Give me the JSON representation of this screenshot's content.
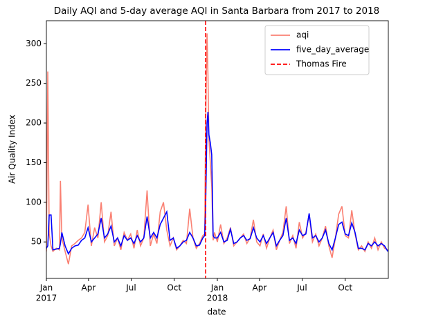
{
  "chart_data": {
    "type": "line",
    "title": "Daily AQI and 5-day average AQI in Santa Barbara from 2017 to 2018",
    "x_label": "date",
    "y_label": "Air Quality Index",
    "x": [
      0,
      3,
      6,
      10,
      14,
      21,
      28,
      30,
      33,
      40,
      47,
      54,
      61,
      68,
      75,
      82,
      89,
      96,
      103,
      110,
      117,
      124,
      131,
      138,
      145,
      152,
      159,
      166,
      173,
      180,
      187,
      194,
      201,
      208,
      215,
      222,
      229,
      236,
      243,
      250,
      257,
      264,
      271,
      278,
      285,
      292,
      299,
      306,
      313,
      320,
      327,
      334,
      338,
      340,
      343,
      345,
      347,
      350,
      353,
      356,
      359,
      365,
      372,
      379,
      386,
      393,
      400,
      407,
      414,
      421,
      428,
      435,
      442,
      449,
      456,
      463,
      470,
      477,
      484,
      491,
      498,
      505,
      512,
      519,
      526,
      533,
      540,
      547,
      554,
      561,
      568,
      575,
      582,
      589,
      596,
      603,
      610,
      617,
      624,
      631,
      638,
      645,
      652,
      659,
      666,
      673,
      680,
      687,
      694,
      701,
      708,
      715,
      722,
      729
    ],
    "series": [
      {
        "name": "aqi",
        "color": "#fa8072",
        "values": [
          38,
          265,
          60,
          45,
          38,
          42,
          40,
          127,
          55,
          38,
          22,
          45,
          48,
          52,
          55,
          62,
          97,
          45,
          68,
          55,
          100,
          50,
          58,
          88,
          45,
          55,
          40,
          62,
          52,
          60,
          42,
          65,
          45,
          55,
          115,
          45,
          60,
          48,
          88,
          100,
          65,
          45,
          55,
          40,
          45,
          52,
          48,
          92,
          55,
          42,
          48,
          58,
          60,
          200,
          313,
          260,
          180,
          150,
          120,
          52,
          62,
          50,
          72,
          48,
          55,
          68,
          45,
          50,
          55,
          60,
          48,
          55,
          78,
          50,
          45,
          60,
          42,
          55,
          65,
          40,
          52,
          62,
          95,
          48,
          58,
          42,
          75,
          55,
          62,
          85,
          50,
          60,
          45,
          55,
          70,
          45,
          30,
          55,
          85,
          95,
          58,
          55,
          90,
          60,
          40,
          45,
          38,
          50,
          42,
          55,
          40,
          50,
          42,
          40
        ]
      },
      {
        "name": "five_day_average",
        "color": "#0000ff",
        "values": [
          42,
          45,
          84,
          84,
          40,
          41,
          42,
          48,
          62,
          45,
          35,
          42,
          45,
          46,
          52,
          55,
          68,
          50,
          55,
          60,
          80,
          55,
          60,
          70,
          50,
          55,
          45,
          58,
          52,
          55,
          48,
          58,
          50,
          55,
          82,
          55,
          62,
          55,
          72,
          80,
          88,
          52,
          55,
          42,
          45,
          50,
          52,
          62,
          55,
          45,
          46,
          55,
          58,
          95,
          200,
          214,
          185,
          175,
          160,
          58,
          55,
          55,
          62,
          50,
          52,
          66,
          48,
          50,
          55,
          58,
          52,
          54,
          68,
          55,
          50,
          58,
          48,
          55,
          62,
          45,
          52,
          58,
          80,
          52,
          55,
          48,
          65,
          58,
          60,
          86,
          55,
          58,
          50,
          55,
          65,
          48,
          40,
          55,
          72,
          75,
          60,
          58,
          74,
          62,
          42,
          42,
          40,
          48,
          45,
          50,
          45,
          48,
          45,
          38
        ]
      }
    ],
    "vlines": [
      {
        "name": "Thomas Fire",
        "x": 340,
        "color": "#ff0000"
      }
    ],
    "xlim": [
      0,
      730
    ],
    "xticks": [
      {
        "value": 0,
        "label": "Jan",
        "year": "2017"
      },
      {
        "value": 90,
        "label": "Apr"
      },
      {
        "value": 181,
        "label": "Jul"
      },
      {
        "value": 273,
        "label": "Oct"
      },
      {
        "value": 365,
        "label": "Jan",
        "year": "2018"
      },
      {
        "value": 455,
        "label": "Apr"
      },
      {
        "value": 546,
        "label": "Jul"
      },
      {
        "value": 638,
        "label": "Oct"
      }
    ],
    "ylim": [
      4,
      329
    ],
    "yticks": [
      50,
      100,
      150,
      200,
      250,
      300
    ],
    "legend": "upper right"
  }
}
